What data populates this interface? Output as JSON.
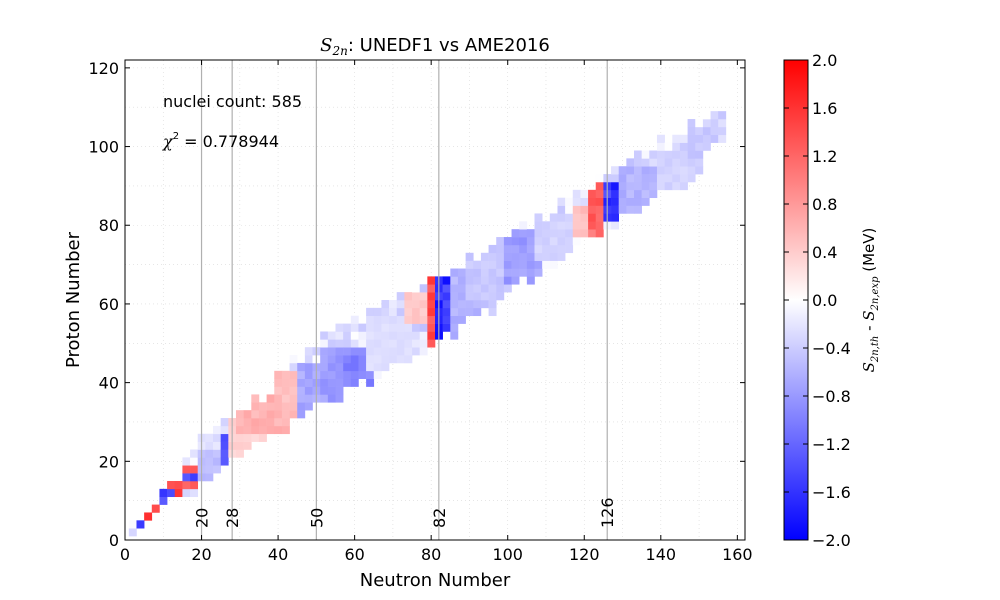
{
  "chart_data": {
    "type": "heatmap",
    "title_math": "S",
    "title_math_sub": "2n",
    "title_text": ":  UNEDF1 vs AME2016",
    "xlabel": "Neutron Number",
    "ylabel": "Proton Number",
    "xlim": [
      0,
      162
    ],
    "ylim": [
      0,
      122
    ],
    "x_ticks": [
      0,
      20,
      40,
      60,
      80,
      100,
      120,
      140,
      160
    ],
    "y_ticks": [
      0,
      20,
      40,
      60,
      80,
      100,
      120
    ],
    "grid": "dotted",
    "magic_numbers": [
      20,
      28,
      50,
      82,
      126
    ],
    "annotations": {
      "count_text": "nuclei count: 585",
      "chi_symbol": "χ",
      "chi_sup": "2",
      "chi_value": " = 0.778944"
    },
    "colorbar": {
      "vmin": -2.0,
      "vmax": 2.0,
      "ticks": [
        "2.0",
        "1.6",
        "1.2",
        "0.8",
        "0.4",
        "0.0",
        "−0.4",
        "−0.8",
        "−1.2",
        "−1.6",
        "−2.0"
      ],
      "tick_values": [
        2.0,
        1.6,
        1.2,
        0.8,
        0.4,
        0.0,
        -0.4,
        -0.8,
        -1.2,
        -1.6,
        -2.0
      ],
      "label_a": "S",
      "label_a_sub": "2n,th",
      "label_mid": " - ",
      "label_b": "S",
      "label_b_sub": "2n,exp",
      "label_unit": " (MeV)",
      "colors": [
        "#0000ff",
        "#ffffff",
        "#ff0000"
      ]
    },
    "regions": [
      {
        "n": [
          4,
          10
        ],
        "z": [
          2,
          10
        ],
        "v": 1.9
      },
      {
        "n": [
          4,
          6
        ],
        "z": [
          3,
          6
        ],
        "v": -1.9
      },
      {
        "n": [
          8,
          16
        ],
        "z": [
          8,
          16
        ],
        "v": 1.6
      },
      {
        "n": [
          10,
          14
        ],
        "z": [
          10,
          14
        ],
        "v": -1.8
      },
      {
        "n": [
          14,
          20
        ],
        "z": [
          14,
          20
        ],
        "v": 1.4
      },
      {
        "n": [
          16,
          20
        ],
        "z": [
          16,
          18
        ],
        "v": -1.7
      },
      {
        "n": [
          20,
          28
        ],
        "z": [
          14,
          24
        ],
        "v": -0.6
      },
      {
        "n": [
          20,
          22
        ],
        "z": [
          12,
          14
        ],
        "v": -1.9
      },
      {
        "n": [
          26,
          30
        ],
        "z": [
          18,
          28
        ],
        "v": -1.6
      },
      {
        "n": [
          28,
          40
        ],
        "z": [
          20,
          32
        ],
        "v": 0.4
      },
      {
        "n": [
          30,
          48
        ],
        "z": [
          28,
          40
        ],
        "v": 0.7
      },
      {
        "n": [
          40,
          50
        ],
        "z": [
          36,
          44
        ],
        "v": 0.6
      },
      {
        "n": [
          46,
          52
        ],
        "z": [
          30,
          46
        ],
        "v": -0.8
      },
      {
        "n": [
          50,
          54
        ],
        "z": [
          28,
          36
        ],
        "v": -1.2
      },
      {
        "n": [
          52,
          64
        ],
        "z": [
          36,
          50
        ],
        "v": -0.9
      },
      {
        "n": [
          58,
          66
        ],
        "z": [
          40,
          48
        ],
        "v": -1.1
      },
      {
        "n": [
          64,
          76
        ],
        "z": [
          44,
          58
        ],
        "v": -0.3
      },
      {
        "n": [
          74,
          82
        ],
        "z": [
          56,
          64
        ],
        "v": 0.5
      },
      {
        "n": [
          80,
          82
        ],
        "z": [
          50,
          68
        ],
        "v": 1.6
      },
      {
        "n": [
          82,
          86
        ],
        "z": [
          50,
          70
        ],
        "v": -1.9
      },
      {
        "n": [
          86,
          96
        ],
        "z": [
          52,
          74
        ],
        "v": -0.7
      },
      {
        "n": [
          90,
          104
        ],
        "z": [
          62,
          82
        ],
        "v": -0.5
      },
      {
        "n": [
          100,
          110
        ],
        "z": [
          66,
          80
        ],
        "v": -0.9
      },
      {
        "n": [
          108,
          118
        ],
        "z": [
          72,
          84
        ],
        "v": -0.4
      },
      {
        "n": [
          118,
          122
        ],
        "z": [
          78,
          86
        ],
        "v": 0.6
      },
      {
        "n": [
          122,
          126
        ],
        "z": [
          78,
          92
        ],
        "v": 1.4
      },
      {
        "n": [
          126,
          130
        ],
        "z": [
          82,
          92
        ],
        "v": -1.9
      },
      {
        "n": [
          130,
          140
        ],
        "z": [
          84,
          96
        ],
        "v": -0.7
      },
      {
        "n": [
          140,
          150
        ],
        "z": [
          88,
          100
        ],
        "v": -0.4
      },
      {
        "n": [
          148,
          156
        ],
        "z": [
          96,
          106
        ],
        "v": -0.5
      }
    ]
  }
}
